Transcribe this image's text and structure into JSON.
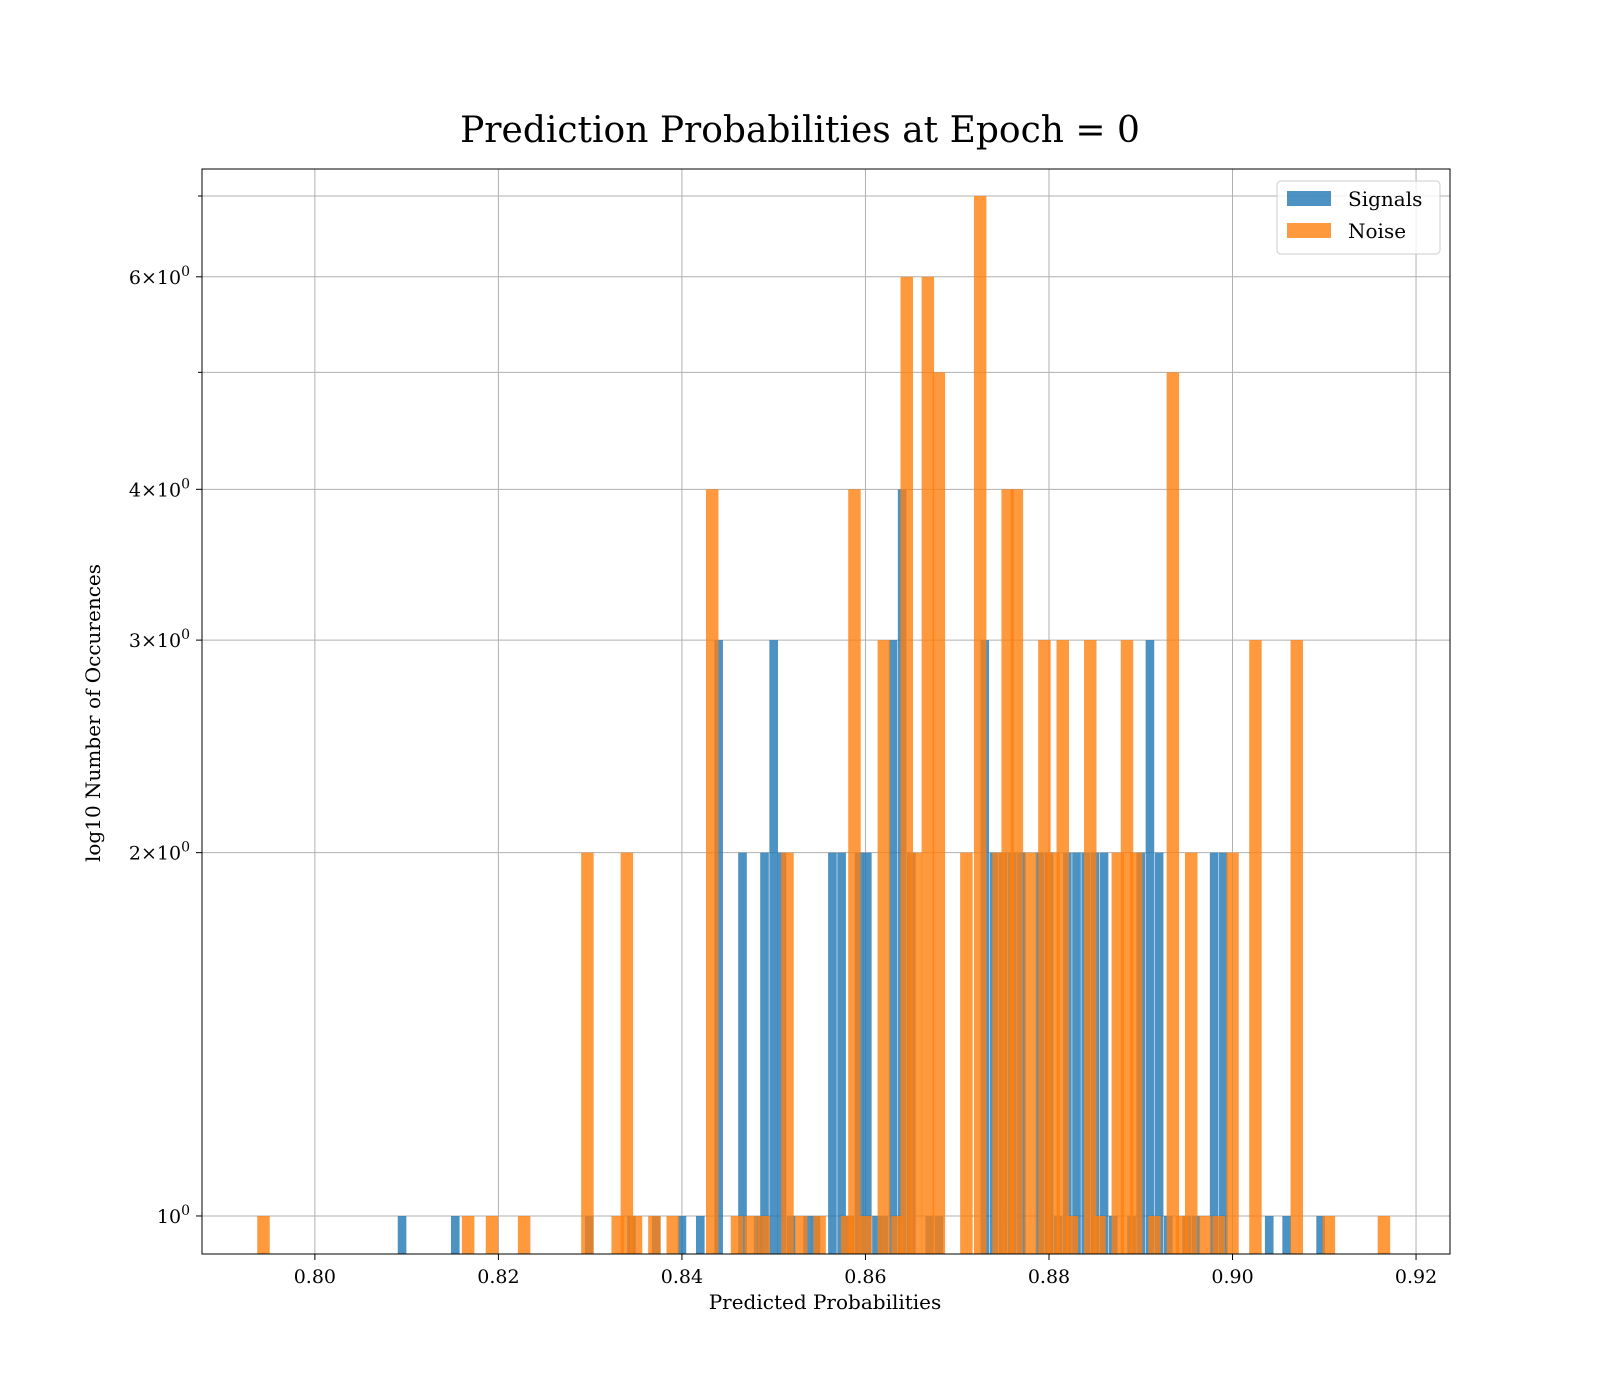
{
  "chart_data": {
    "type": "histogram",
    "title": "Prediction Probabilities at Epoch = 0",
    "xlabel": "Predicted Probabilities",
    "ylabel": "log10 Number of Occurences",
    "xlim": [
      0.7877,
      0.9237
    ],
    "ylim": [
      0.93,
      7.37
    ],
    "yscale": "log",
    "grid": true,
    "legend_position": "top-right",
    "x_ticks": [
      {
        "value": 0.8,
        "label": "0.80"
      },
      {
        "value": 0.82,
        "label": "0.82"
      },
      {
        "value": 0.84,
        "label": "0.84"
      },
      {
        "value": 0.86,
        "label": "0.86"
      },
      {
        "value": 0.88,
        "label": "0.88"
      },
      {
        "value": 0.9,
        "label": "0.90"
      },
      {
        "value": 0.92,
        "label": "0.92"
      }
    ],
    "y_ticks": [
      {
        "value": 1,
        "label": "10⁰",
        "mant": "",
        "exp": "0"
      },
      {
        "value": 2,
        "label": "2×10⁰",
        "mant": "2",
        "exp": "0"
      },
      {
        "value": 3,
        "label": "3×10⁰",
        "mant": "3",
        "exp": "0"
      },
      {
        "value": 4,
        "label": "4×10⁰",
        "mant": "4",
        "exp": "0"
      },
      {
        "value": 6,
        "label": "6×10⁰",
        "mant": "6",
        "exp": "0"
      }
    ],
    "y_minor_ticks": [
      5,
      7
    ],
    "series": [
      {
        "name": "Signals",
        "color": "#1f77b4",
        "opacity": 0.8,
        "bin_width": 0.00094,
        "bins": [
          [
            0.8095,
            1
          ],
          [
            0.8153,
            1
          ],
          [
            0.8299,
            1
          ],
          [
            0.8345,
            1
          ],
          [
            0.8372,
            1
          ],
          [
            0.84,
            1
          ],
          [
            0.842,
            1
          ],
          [
            0.844,
            3
          ],
          [
            0.8466,
            2
          ],
          [
            0.8483,
            1
          ],
          [
            0.849,
            2
          ],
          [
            0.85,
            3
          ],
          [
            0.8509,
            2
          ],
          [
            0.8519,
            1
          ],
          [
            0.8537,
            1
          ],
          [
            0.8546,
            1
          ],
          [
            0.8564,
            2
          ],
          [
            0.8574,
            2
          ],
          [
            0.8583,
            1
          ],
          [
            0.8593,
            2
          ],
          [
            0.8602,
            2
          ],
          [
            0.8612,
            1
          ],
          [
            0.862,
            1
          ],
          [
            0.863,
            3
          ],
          [
            0.864,
            4
          ],
          [
            0.865,
            2
          ],
          [
            0.867,
            1
          ],
          [
            0.868,
            1
          ],
          [
            0.873,
            3
          ],
          [
            0.874,
            2
          ],
          [
            0.875,
            2
          ],
          [
            0.876,
            2
          ],
          [
            0.877,
            2
          ],
          [
            0.879,
            2
          ],
          [
            0.88,
            2
          ],
          [
            0.881,
            1
          ],
          [
            0.882,
            2
          ],
          [
            0.883,
            2
          ],
          [
            0.884,
            2
          ],
          [
            0.885,
            2
          ],
          [
            0.886,
            2
          ],
          [
            0.887,
            1
          ],
          [
            0.889,
            1
          ],
          [
            0.89,
            2
          ],
          [
            0.891,
            3
          ],
          [
            0.892,
            2
          ],
          [
            0.893,
            1
          ],
          [
            0.895,
            1
          ],
          [
            0.896,
            1
          ],
          [
            0.898,
            2
          ],
          [
            0.899,
            2
          ],
          [
            0.904,
            1
          ],
          [
            0.9059,
            1
          ],
          [
            0.9096,
            1
          ]
        ]
      },
      {
        "name": "Noise",
        "color": "#ff7f0e",
        "opacity": 0.8,
        "bin_width": 0.00136,
        "bins": [
          [
            0.7944,
            1
          ],
          [
            0.8167,
            1
          ],
          [
            0.8193,
            1
          ],
          [
            0.8228,
            1
          ],
          [
            0.8297,
            2
          ],
          [
            0.833,
            1
          ],
          [
            0.834,
            2
          ],
          [
            0.835,
            1
          ],
          [
            0.837,
            1
          ],
          [
            0.839,
            1
          ],
          [
            0.8433,
            4
          ],
          [
            0.846,
            1
          ],
          [
            0.8475,
            1
          ],
          [
            0.8489,
            1
          ],
          [
            0.8515,
            2
          ],
          [
            0.853,
            1
          ],
          [
            0.855,
            1
          ],
          [
            0.858,
            1
          ],
          [
            0.8588,
            4
          ],
          [
            0.86,
            1
          ],
          [
            0.862,
            3
          ],
          [
            0.8635,
            1
          ],
          [
            0.8645,
            6
          ],
          [
            0.8655,
            2
          ],
          [
            0.8668,
            6
          ],
          [
            0.868,
            5
          ],
          [
            0.871,
            2
          ],
          [
            0.8725,
            7
          ],
          [
            0.8745,
            2
          ],
          [
            0.8755,
            4
          ],
          [
            0.8765,
            4
          ],
          [
            0.878,
            2
          ],
          [
            0.8795,
            3
          ],
          [
            0.8805,
            2
          ],
          [
            0.8815,
            3
          ],
          [
            0.8825,
            1
          ],
          [
            0.8845,
            3
          ],
          [
            0.8855,
            1
          ],
          [
            0.8875,
            2
          ],
          [
            0.8885,
            3
          ],
          [
            0.8895,
            2
          ],
          [
            0.8915,
            1
          ],
          [
            0.8935,
            5
          ],
          [
            0.8945,
            1
          ],
          [
            0.8955,
            2
          ],
          [
            0.897,
            1
          ],
          [
            0.8985,
            1
          ],
          [
            0.9,
            2
          ],
          [
            0.9025,
            3
          ],
          [
            0.907,
            3
          ],
          [
            0.9105,
            1
          ],
          [
            0.9165,
            1
          ]
        ]
      }
    ]
  }
}
